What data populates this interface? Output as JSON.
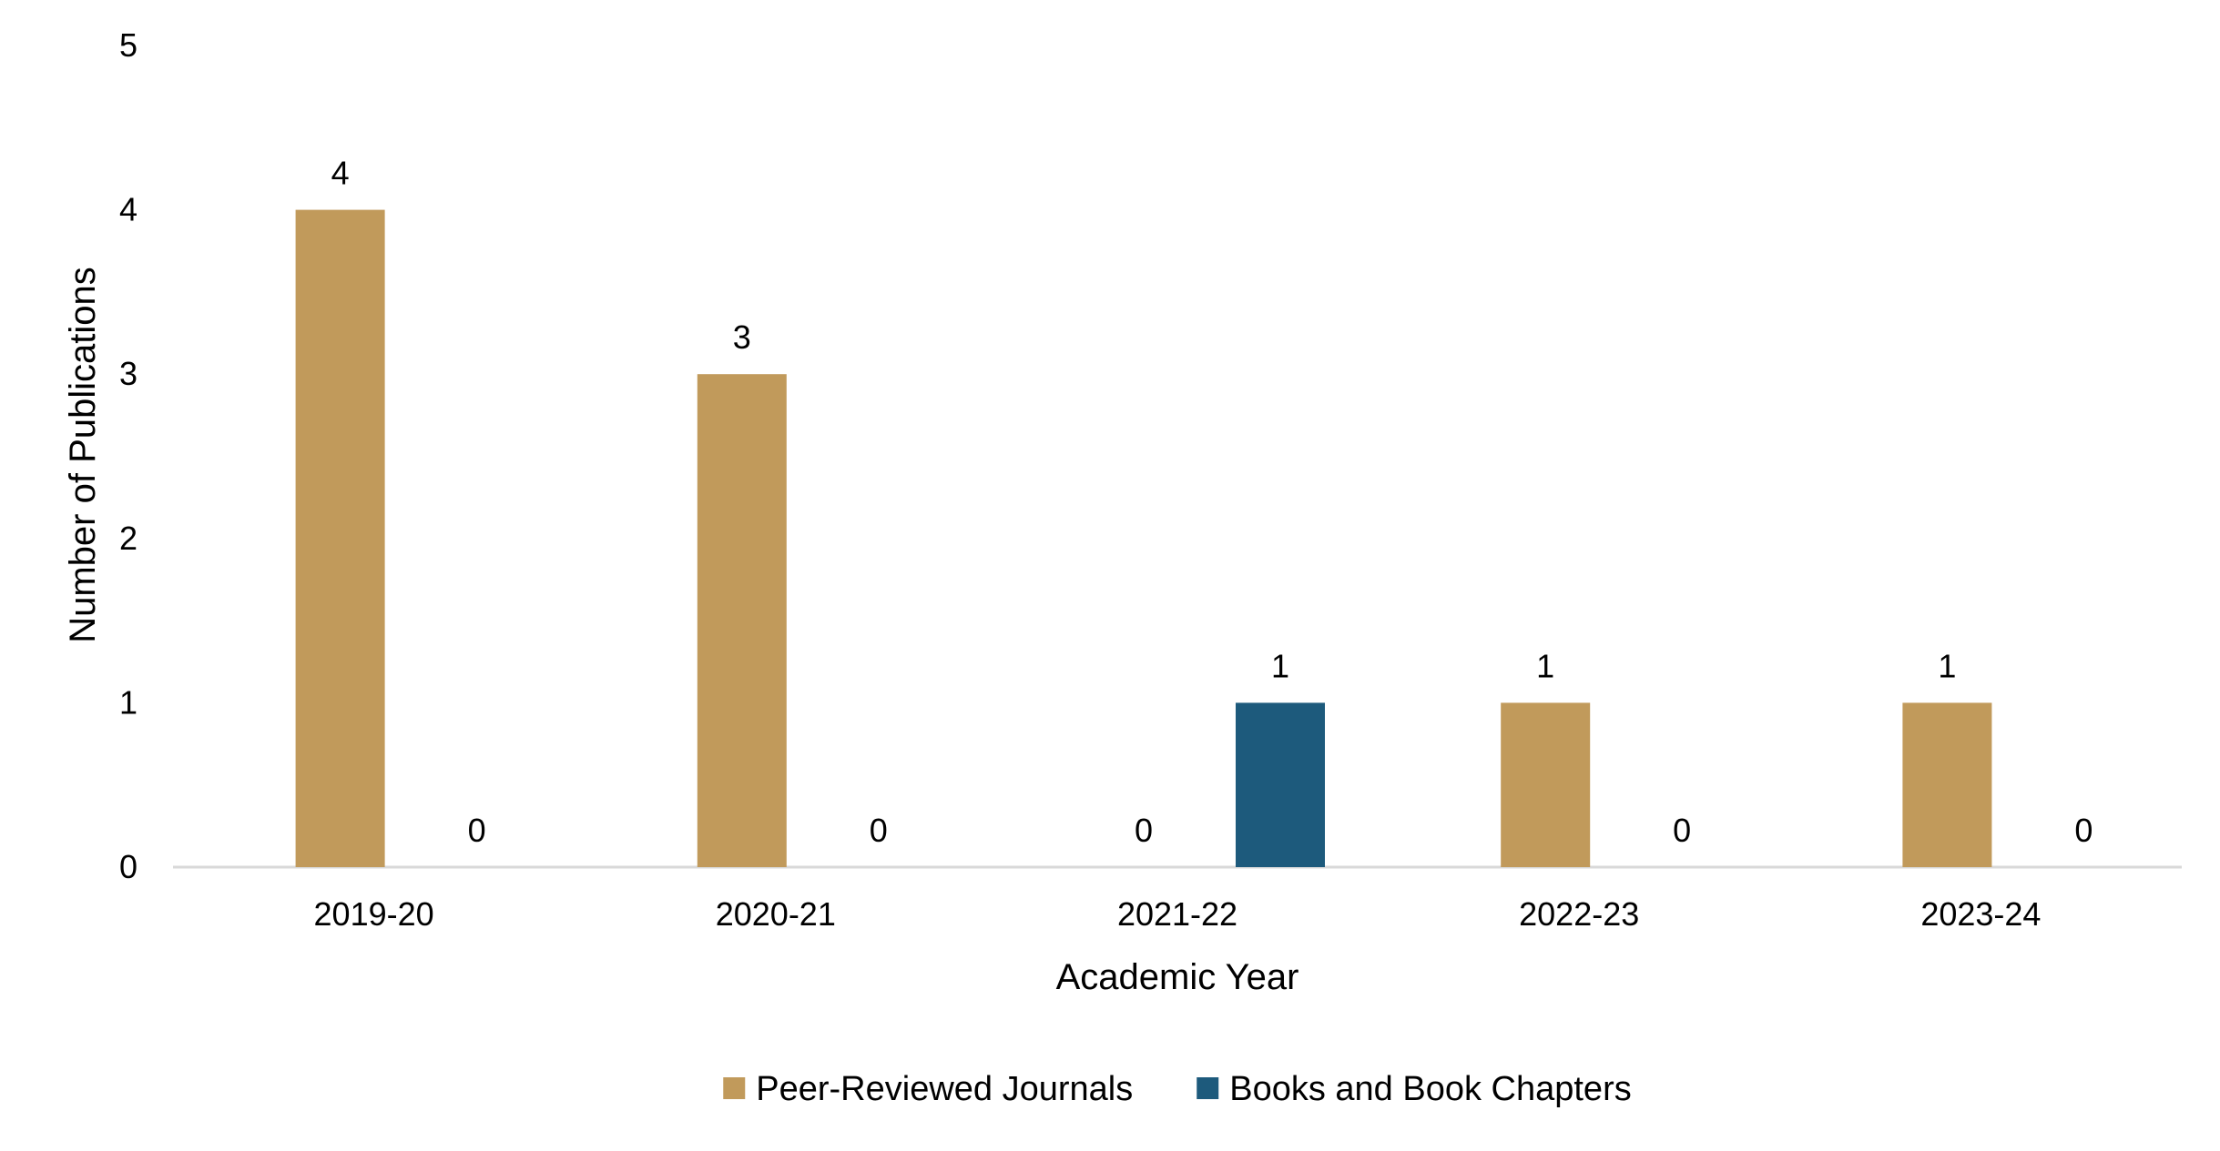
{
  "chart_data": {
    "type": "bar",
    "title": "",
    "xlabel": "Academic Year",
    "ylabel": "Number of Publications",
    "ylim": [
      0,
      5
    ],
    "yticks": [
      0,
      1,
      2,
      3,
      4,
      5
    ],
    "categories": [
      "2019-20",
      "2020-21",
      "2021-22",
      "2022-23",
      "2023-24"
    ],
    "series": [
      {
        "name": "Peer-Reviewed Journals",
        "values": [
          4,
          3,
          0,
          1,
          1
        ],
        "color": "#C19A5B"
      },
      {
        "name": "Books and Book Chapters",
        "values": [
          0,
          0,
          1,
          0,
          0
        ],
        "color": "#1D5A7C"
      }
    ],
    "data_labels": true,
    "grid": false,
    "legend": "bottom-center"
  }
}
